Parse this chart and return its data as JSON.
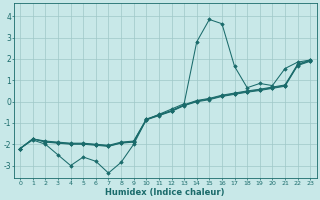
{
  "xlabel": "Humidex (Indice chaleur)",
  "bg_color": "#c8e8e8",
  "grid_color": "#9fc8c8",
  "line_color": "#1a6b6b",
  "xlim": [
    -0.5,
    23.5
  ],
  "ylim": [
    -3.6,
    4.6
  ],
  "xticks": [
    0,
    1,
    2,
    3,
    4,
    5,
    6,
    7,
    8,
    9,
    10,
    11,
    12,
    13,
    14,
    15,
    16,
    17,
    18,
    19,
    20,
    21,
    22,
    23
  ],
  "yticks": [
    -3,
    -2,
    -1,
    0,
    1,
    2,
    3,
    4
  ],
  "series1_x": [
    0,
    1,
    2,
    3,
    4,
    5,
    6,
    7,
    8,
    9,
    10,
    11,
    12,
    13,
    14,
    15,
    16,
    17,
    18,
    19,
    20,
    21,
    22,
    23
  ],
  "series1_y": [
    -2.2,
    -1.8,
    -2.0,
    -2.5,
    -3.0,
    -2.6,
    -2.8,
    -3.35,
    -2.85,
    -2.0,
    -0.85,
    -0.6,
    -0.35,
    -0.1,
    2.8,
    3.85,
    3.65,
    1.65,
    0.65,
    0.85,
    0.75,
    1.55,
    1.85,
    1.95
  ],
  "series2_x": [
    0,
    1,
    2,
    3,
    4,
    5,
    6,
    7,
    8,
    9,
    10,
    11,
    12,
    13,
    14,
    15,
    16,
    17,
    18,
    19,
    20,
    21,
    22,
    23
  ],
  "series2_y": [
    -2.2,
    -1.75,
    -1.85,
    -1.9,
    -1.95,
    -1.95,
    -2.0,
    -2.05,
    -1.9,
    -1.85,
    -0.82,
    -0.62,
    -0.42,
    -0.15,
    0.05,
    0.15,
    0.3,
    0.4,
    0.5,
    0.58,
    0.68,
    0.78,
    1.75,
    1.95
  ],
  "series3_x": [
    0,
    1,
    2,
    3,
    4,
    5,
    6,
    7,
    8,
    9,
    10,
    11,
    12,
    13,
    14,
    15,
    16,
    17,
    18,
    19,
    20,
    21,
    22,
    23
  ],
  "series3_y": [
    -2.2,
    -1.75,
    -1.88,
    -1.93,
    -1.97,
    -1.98,
    -2.02,
    -2.08,
    -1.93,
    -1.88,
    -0.84,
    -0.64,
    -0.44,
    -0.17,
    0.02,
    0.12,
    0.27,
    0.37,
    0.47,
    0.55,
    0.65,
    0.75,
    1.72,
    1.92
  ],
  "series4_x": [
    0,
    1,
    2,
    3,
    4,
    5,
    6,
    7,
    8,
    9,
    10,
    11,
    12,
    13,
    14,
    15,
    16,
    17,
    18,
    19,
    20,
    21,
    22,
    23
  ],
  "series4_y": [
    -2.2,
    -1.75,
    -1.9,
    -1.95,
    -2.0,
    -2.0,
    -2.05,
    -2.1,
    -1.95,
    -1.9,
    -0.86,
    -0.66,
    -0.46,
    -0.19,
    -0.01,
    0.09,
    0.24,
    0.34,
    0.44,
    0.52,
    0.62,
    0.72,
    1.69,
    1.89
  ]
}
